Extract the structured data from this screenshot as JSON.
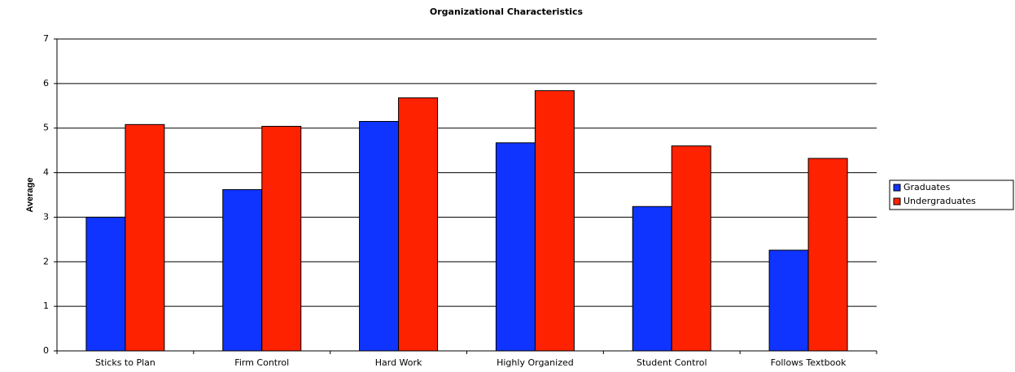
{
  "chart_data": {
    "type": "bar",
    "title": "Organizational Characteristics",
    "y_label": "Average",
    "categories": [
      "Sticks to Plan",
      "Firm Control",
      "Hard Work",
      "Highly Organized",
      "Student Control",
      "Follows Textbook"
    ],
    "series": [
      {
        "name": "Graduates",
        "color": "#1034ff",
        "values": [
          3.0,
          3.62,
          5.15,
          4.67,
          3.24,
          2.26
        ]
      },
      {
        "name": "Undergraduates",
        "color": "#ff2200",
        "values": [
          5.08,
          5.04,
          5.68,
          5.84,
          4.6,
          4.32
        ]
      }
    ],
    "ylim": [
      0,
      7
    ],
    "yticks": [
      0,
      1,
      2,
      3,
      4,
      5,
      6,
      7
    ],
    "grid": true,
    "legend": "right"
  }
}
